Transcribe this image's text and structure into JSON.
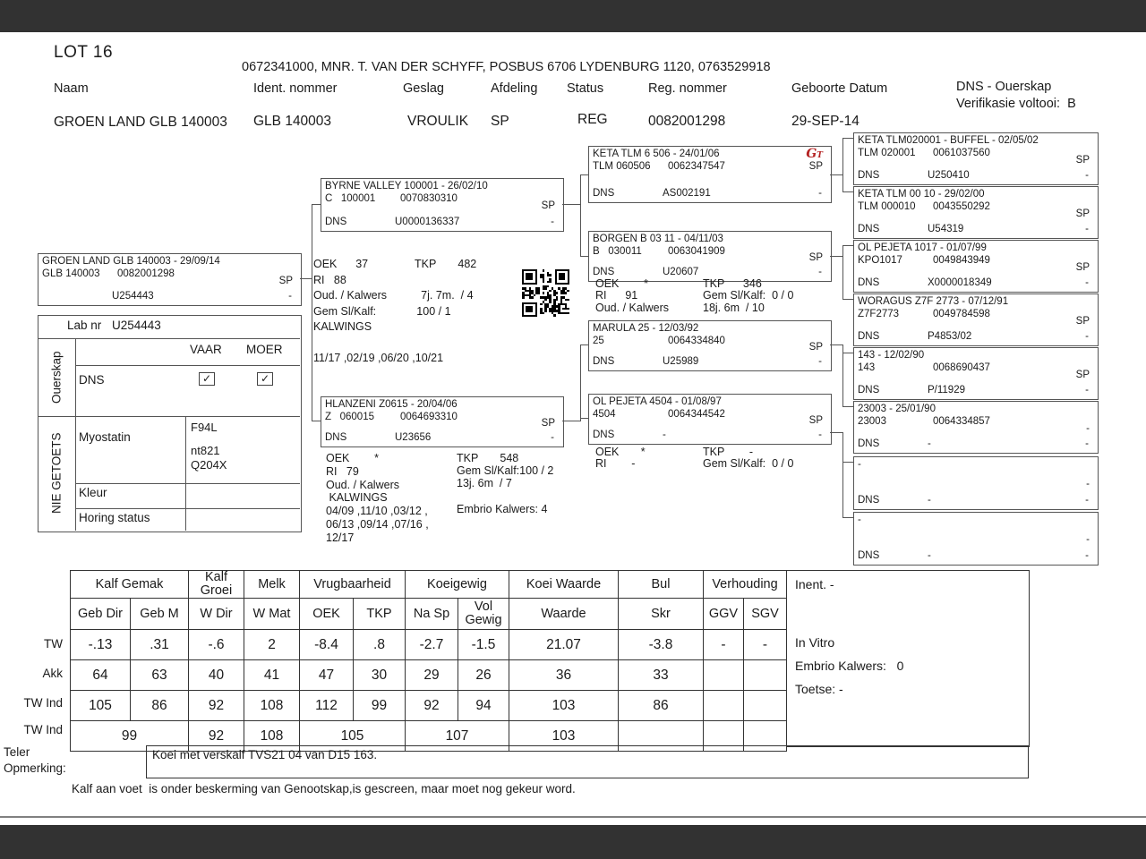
{
  "page": {
    "lot": "LOT 16",
    "owner_line": "0672341000, MNR. T. VAN DER SCHYFF, POSBUS 6706 LYDENBURG 1120, 0763529918",
    "footer_note": "Kalf aan voet  is onder beskerming van Genootskap,is gescreen, maar moet nog gekeur word."
  },
  "header": {
    "labels": {
      "naam": "Naam",
      "ident": "Ident. nommer",
      "geslag": "Geslag",
      "afdeling": "Afdeling",
      "status": "Status",
      "reg": "Reg. nommer",
      "geboorte": "Geboorte Datum",
      "dns1": "DNS - Ouerskap",
      "dns2": "Verifikasie voltooi:  B"
    },
    "values": {
      "naam": "GROEN LAND GLB 140003",
      "ident": "GLB 140003",
      "geslag": "VROULIK",
      "afdeling": "SP",
      "status": "REG",
      "reg": "0082001298",
      "geboorte": "29-SEP-14"
    }
  },
  "pedigree": {
    "proband": {
      "title": "GROEN LAND GLB 140003 - 29/09/14",
      "id": "GLB 140003",
      "reg": "0082001298",
      "sp": "SP",
      "dns_label": "",
      "dns": "U254443",
      "dash": "-"
    },
    "sire": {
      "title": "BYRNE VALLEY 100001 - 26/02/10",
      "id": "C   100001",
      "reg": "0070830310",
      "sp": "SP",
      "dns_label": "DNS",
      "dns": "U0000136337",
      "dash": "-"
    },
    "dam": {
      "title": "HLANZENI Z0615 - 20/04/06",
      "id": "Z   060015",
      "reg": "0064693310",
      "sp": "SP",
      "dns_label": "DNS",
      "dns": "U23656",
      "dash": "-"
    },
    "gp": [
      {
        "title": "KETA TLM 6 506 - 24/01/06",
        "id": "TLM 060506",
        "reg": "0062347547",
        "sp": "SP",
        "dns_label": "DNS",
        "dns": "AS002191",
        "dash": "-",
        "logo": "GT"
      },
      {
        "title": "BORGEN B 03 11 - 04/11/03",
        "id": "B   030011",
        "reg": "0063041909",
        "sp": "SP",
        "dns_label": "DNS",
        "dns": "U20607",
        "dash": "-"
      },
      {
        "title": "MARULA 25 - 12/03/92",
        "id": "25",
        "reg": "0064334840",
        "sp": "SP",
        "dns_label": "DNS",
        "dns": "U25989",
        "dash": "-"
      },
      {
        "title": "OL PEJETA 4504 - 01/08/97",
        "id": "4504",
        "reg": "0064344542",
        "sp": "SP",
        "dns_label": "DNS",
        "dns": "-",
        "dash": "-"
      }
    ],
    "ggp": [
      {
        "title": "KETA TLM020001 - BUFFEL - 02/05/02",
        "id": "TLM 020001",
        "reg": "0061037560",
        "sp": "SP",
        "dns_label": "DNS",
        "dns": "U250410",
        "dash": "-"
      },
      {
        "title": "KETA TLM 00 10 - 29/02/00",
        "id": "TLM 000010",
        "reg": "0043550292",
        "sp": "SP",
        "dns_label": "DNS",
        "dns": "U54319",
        "dash": "-"
      },
      {
        "title": "OL PEJETA 1017 - 01/07/99",
        "id": "KPO1017",
        "reg": "0049843949",
        "sp": "SP",
        "dns_label": "DNS",
        "dns": "X0000018349",
        "dash": "-"
      },
      {
        "title": "WORAGUS Z7F 2773 - 07/12/91",
        "id": "Z7F2773",
        "reg": "0049784598",
        "sp": "SP",
        "dns_label": "DNS",
        "dns": "P4853/02",
        "dash": "-"
      },
      {
        "title": "143 - 12/02/90",
        "id": "143",
        "reg": "0068690437",
        "sp": "SP",
        "dns_label": "DNS",
        "dns": "P/11929",
        "dash": "-"
      },
      {
        "title": "23003 - 25/01/90",
        "id": "23003",
        "reg": "0064334857",
        "sp": "-",
        "dns_label": "DNS",
        "dns": "-",
        "dash": "-"
      },
      {
        "title": "-",
        "id": "",
        "reg": "",
        "sp": "-",
        "dns_label": "DNS",
        "dns": "-",
        "dash": "-"
      },
      {
        "title": "-",
        "id": "",
        "reg": "",
        "sp": "-",
        "dns_label": "DNS",
        "dns": "-",
        "dash": "-"
      }
    ],
    "sire_stats": [
      "OEK      37               TKP       482",
      "RI   88",
      "Oud. / Kalwers           7j. 7m.  / 4",
      "Gem Sl/Kalf:             100 / 1",
      "KALWINGS",
      "",
      "11/17 ,02/19 ,06/20 ,10/21"
    ],
    "dam_stats_left": [
      "OEK        *",
      "RI   79",
      "Oud. / Kalwers",
      " KALWINGS",
      "04/09 ,11/10 ,03/12 ,",
      "06/13 ,09/14 ,07/16 ,",
      "12/17"
    ],
    "dam_stats_right": [
      "TKP       548",
      "Gem Sl/Kalf:100 / 2",
      "13j. 6m  / 7",
      "",
      "Embrio Kalwers: 4"
    ],
    "gp2_stats_left": [
      "OEK        *",
      "RI      91",
      "Oud. / Kalwers"
    ],
    "gp2_stats_right": [
      "TKP      346",
      "Gem Sl/Kalf:  0 / 0",
      "18j. 6m  / 10"
    ],
    "gp4_stats_left": [
      "OEK       *",
      "RI        -"
    ],
    "gp4_stats_right": [
      "TKP        -",
      "Gem Sl/Kalf:  0 / 0"
    ]
  },
  "lab": {
    "lab_nr_label": "Lab nr",
    "lab_nr": "U254443",
    "vaar": "VAAR",
    "moer": "MOER",
    "dns": "DNS",
    "ouerskap": "Ouerskap",
    "nie_getoets": "NIE GETOETS",
    "check_glyph": "✓",
    "myostatin_label": "Myostatin",
    "myostatin_values": [
      "F94L",
      "nt821",
      "Q204X"
    ],
    "kleur_label": "Kleur",
    "kleur_value": "",
    "horing_label": "Horing status",
    "horing_value": ""
  },
  "table": {
    "row_labels": [
      "TW",
      "Akk",
      "TW Ind",
      "TW Ind"
    ],
    "groups": [
      {
        "label": "Kalf Gemak",
        "span": 2
      },
      {
        "label": "Kalf Groei",
        "span": 1
      },
      {
        "label": "Melk",
        "span": 1
      },
      {
        "label": "Vrugbaarheid",
        "span": 2
      },
      {
        "label": "Koeigewig",
        "span": 2
      },
      {
        "label": "Koei Waarde",
        "span": 1
      },
      {
        "label": "Bul",
        "span": 1
      },
      {
        "label": "Verhouding",
        "span": 2
      }
    ],
    "subheaders": [
      "Geb Dir",
      "Geb M",
      "W Dir",
      "W Mat",
      "OEK",
      "TKP",
      "Na Sp",
      "Vol Gewig",
      "Waarde",
      "Skr",
      "GGV",
      "SGV"
    ],
    "rows": [
      {
        "cells": [
          {
            "v": "-.13"
          },
          {
            "v": ".31"
          },
          {
            "v": "-.6"
          },
          {
            "v": "2"
          },
          {
            "v": "-8.4"
          },
          {
            "v": ".8"
          },
          {
            "v": "-2.7"
          },
          {
            "v": "-1.5"
          },
          {
            "v": "21.07"
          },
          {
            "v": "-3.8"
          },
          {
            "v": "-"
          },
          {
            "v": "-"
          }
        ]
      },
      {
        "cells": [
          {
            "v": "64"
          },
          {
            "v": "63"
          },
          {
            "v": "40"
          },
          {
            "v": "41"
          },
          {
            "v": "47"
          },
          {
            "v": "30"
          },
          {
            "v": "29"
          },
          {
            "v": "26"
          },
          {
            "v": "36"
          },
          {
            "v": "33"
          },
          {
            "v": ""
          },
          {
            "v": ""
          }
        ]
      },
      {
        "cells": [
          {
            "v": "105"
          },
          {
            "v": "86"
          },
          {
            "v": "92"
          },
          {
            "v": "108"
          },
          {
            "v": "112"
          },
          {
            "v": "99"
          },
          {
            "v": "92"
          },
          {
            "v": "94"
          },
          {
            "v": "103"
          },
          {
            "v": "86"
          },
          {
            "v": ""
          },
          {
            "v": ""
          }
        ]
      },
      {
        "cells": [
          {
            "v": "99",
            "span": 2
          },
          {
            "v": "92"
          },
          {
            "v": "108"
          },
          {
            "v": "105",
            "span": 2
          },
          {
            "v": "107",
            "span": 2
          },
          {
            "v": "103"
          },
          {
            "v": ""
          },
          {
            "v": ""
          },
          {
            "v": ""
          }
        ]
      }
    ]
  },
  "inent": {
    "line1": "Inent. -",
    "line2": "In Vitro",
    "line3": "Embrio Kalwers:   0",
    "line4": "Toetse: -"
  },
  "opmerking": {
    "label1": "Teler",
    "label2": "Opmerking:",
    "text": "Koei met verskalf TVS21 04 van D15 163."
  }
}
